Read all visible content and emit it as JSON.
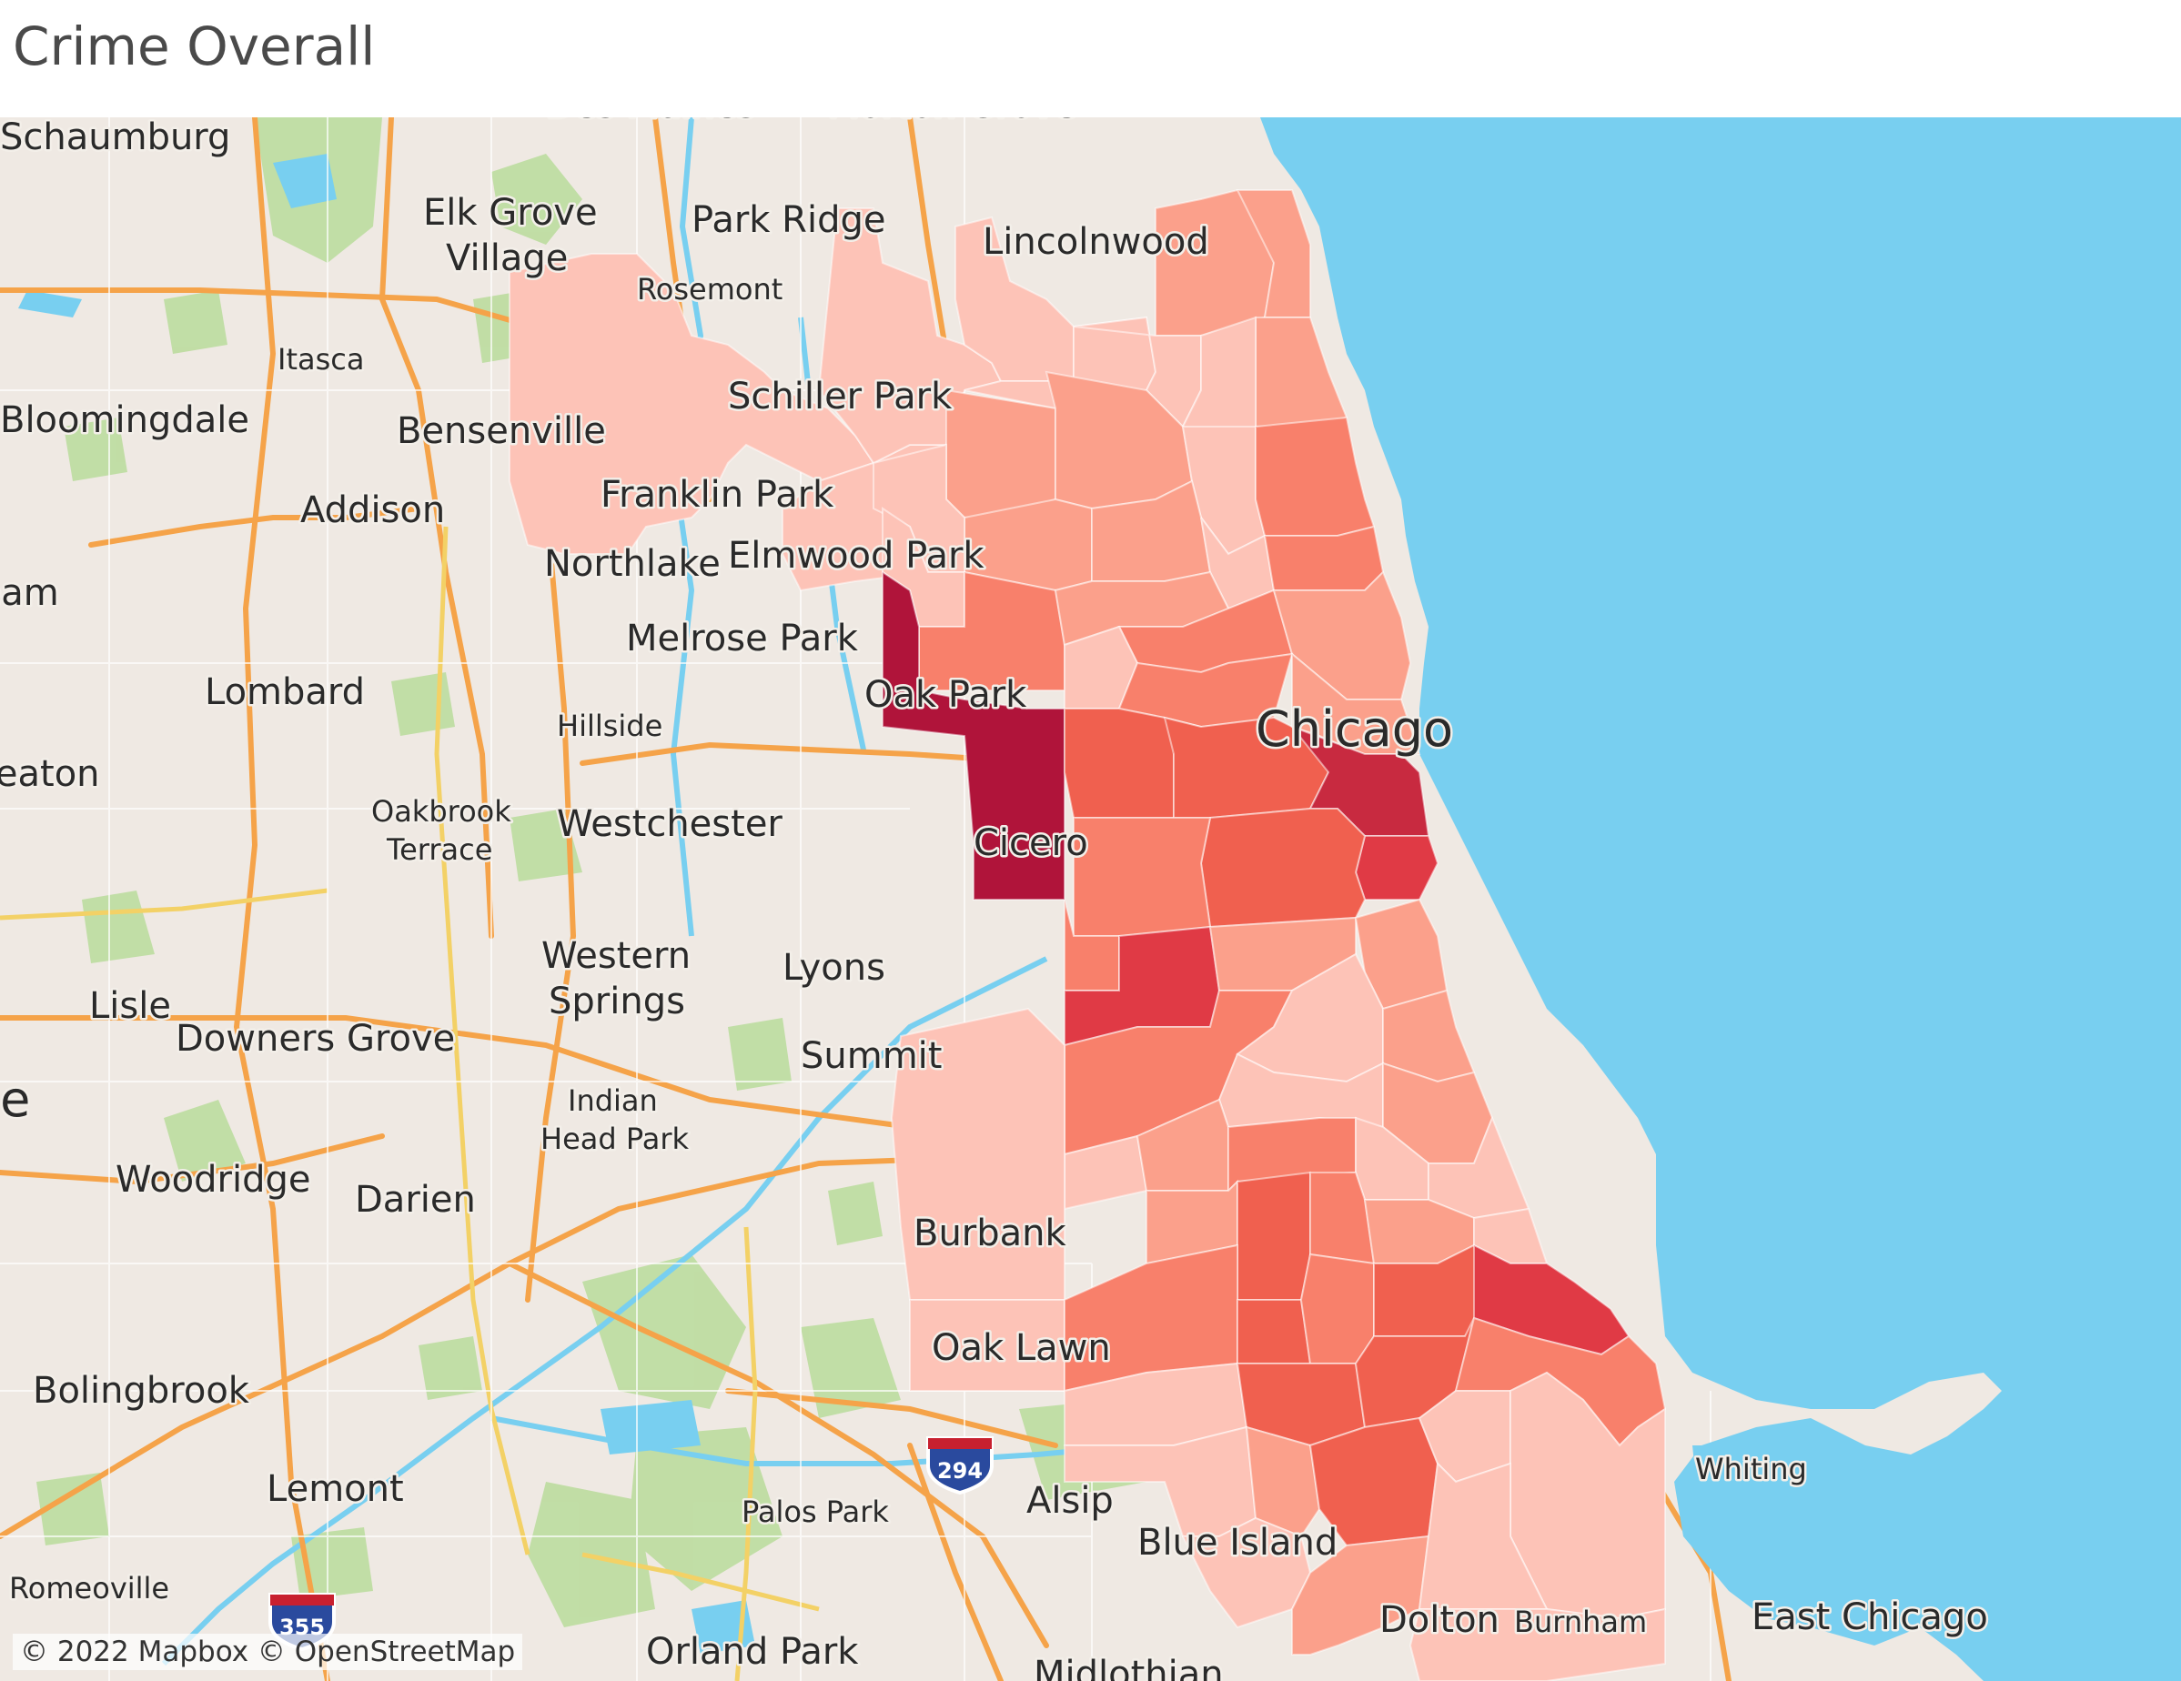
{
  "title": "Crime Overall",
  "attribution": "© 2022 Mapbox © OpenStreetMap",
  "colors": {
    "land": "#efe9e3",
    "water": "#78cff0",
    "road_major": "#f5a349",
    "road_yellow": "#f3d166",
    "park": "#b9dc9b",
    "choropleth": [
      "#fdc3b7",
      "#fba08b",
      "#f8806b",
      "#f0604f",
      "#e03a45",
      "#c82a40",
      "#b0143a"
    ]
  },
  "place_labels": [
    {
      "text": "Schaumburg",
      "size": "big"
    },
    {
      "text": "Des Plaines",
      "size": "big"
    },
    {
      "text": "Morton Grove",
      "size": "big"
    },
    {
      "text": "Elk Grove",
      "size": "big"
    },
    {
      "text": "Village",
      "size": "big"
    },
    {
      "text": "Park Ridge",
      "size": "big"
    },
    {
      "text": "Lincolnwood",
      "size": "big"
    },
    {
      "text": "Rosemont",
      "size": "sm"
    },
    {
      "text": "Itasca",
      "size": "sm"
    },
    {
      "text": "Schiller Park",
      "size": "big"
    },
    {
      "text": "Bloomingdale",
      "size": "big"
    },
    {
      "text": "Bensenville",
      "size": "big"
    },
    {
      "text": "Franklin Park",
      "size": "big"
    },
    {
      "text": "Addison",
      "size": "big"
    },
    {
      "text": "Northlake",
      "size": "big"
    },
    {
      "text": "Elmwood Park",
      "size": "big"
    },
    {
      "text": "Stream",
      "size": "big"
    },
    {
      "text": "Melrose Park",
      "size": "big"
    },
    {
      "text": "Oak Park",
      "size": "big"
    },
    {
      "text": "Lombard",
      "size": "big"
    },
    {
      "text": "Hillside",
      "size": "sm"
    },
    {
      "text": "Chicago",
      "size": "xl"
    },
    {
      "text": "Wheaton",
      "size": "big"
    },
    {
      "text": "Oakbrook",
      "size": "sm"
    },
    {
      "text": "Terrace",
      "size": "sm"
    },
    {
      "text": "Westchester",
      "size": "big"
    },
    {
      "text": "Cicero",
      "size": "big"
    },
    {
      "text": "Western",
      "size": "big"
    },
    {
      "text": "Springs",
      "size": "big"
    },
    {
      "text": "Lyons",
      "size": "big"
    },
    {
      "text": "Lisle",
      "size": "big"
    },
    {
      "text": "Downers Grove",
      "size": "big"
    },
    {
      "text": "Summit",
      "size": "big"
    },
    {
      "text": "Naperville",
      "size": "xl"
    },
    {
      "text": "Indian",
      "size": "sm"
    },
    {
      "text": "Head Park",
      "size": "sm"
    },
    {
      "text": "Woodridge",
      "size": "big"
    },
    {
      "text": "Darien",
      "size": "big"
    },
    {
      "text": "Burbank",
      "size": "big"
    },
    {
      "text": "Oak Lawn",
      "size": "big"
    },
    {
      "text": "Bolingbrook",
      "size": "big"
    },
    {
      "text": "Whiting",
      "size": "sm"
    },
    {
      "text": "Lemont",
      "size": "big"
    },
    {
      "text": "Palos Park",
      "size": "sm"
    },
    {
      "text": "Alsip",
      "size": "big"
    },
    {
      "text": "Blue Island",
      "size": "big"
    },
    {
      "text": "Romeoville",
      "size": "sm"
    },
    {
      "text": "Dolton",
      "size": "big"
    },
    {
      "text": "Burnham",
      "size": "sm"
    },
    {
      "text": "East Chicago",
      "size": "big"
    },
    {
      "text": "Orland Park",
      "size": "big"
    },
    {
      "text": "Midlothian",
      "size": "big"
    }
  ],
  "highway_shields": [
    {
      "text": "294"
    },
    {
      "text": "355"
    }
  ]
}
